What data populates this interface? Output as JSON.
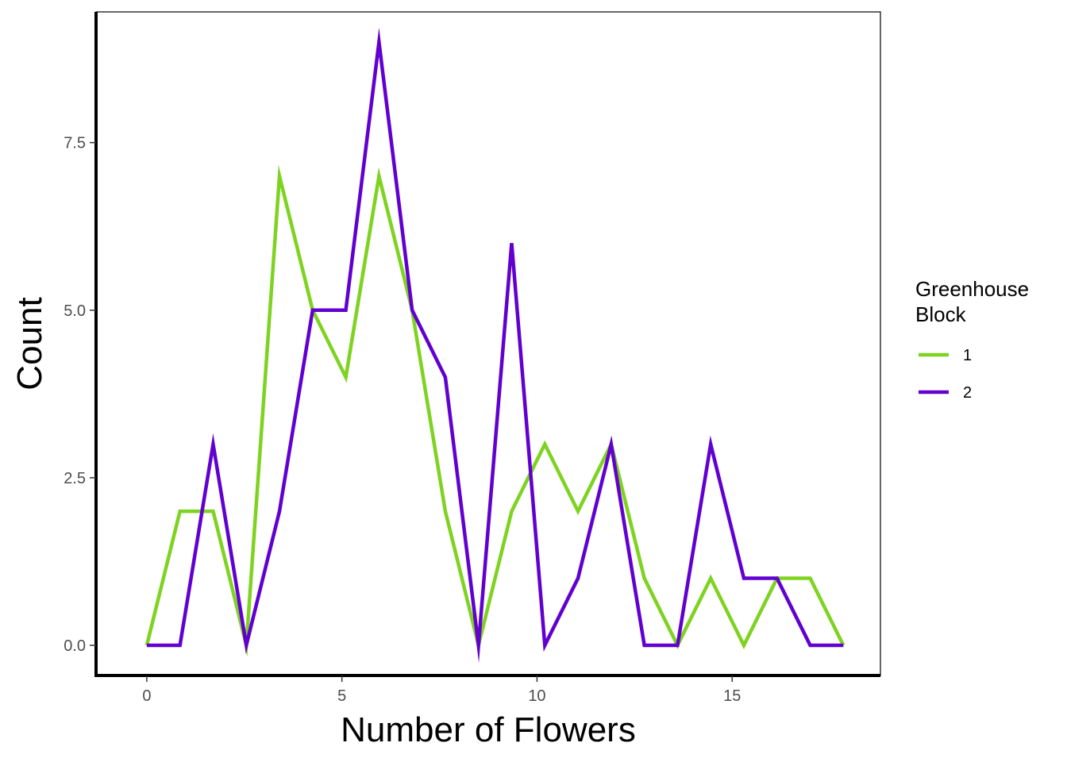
{
  "chart_data": {
    "type": "line",
    "title": "",
    "xlabel": "Number of Flowers",
    "ylabel": "Count",
    "xlim": [
      -1.3,
      18.8
    ],
    "ylim": [
      -0.45,
      9.45
    ],
    "xticks": [
      0,
      5,
      10,
      15
    ],
    "xtick_labels": [
      "0",
      "5",
      "10",
      "15"
    ],
    "yticks": [
      0,
      2.5,
      5,
      7.5
    ],
    "ytick_labels": [
      "0.0",
      "2.5",
      "5.0",
      "7.5"
    ],
    "grid": false,
    "legend": {
      "title_lines": [
        "Greenhouse",
        "Block"
      ],
      "position": "right"
    },
    "x": [
      0,
      0.85,
      1.7,
      2.55,
      3.4,
      4.25,
      5.1,
      5.95,
      6.8,
      7.65,
      8.5,
      9.35,
      10.2,
      11.05,
      11.9,
      12.75,
      13.6,
      14.45,
      15.3,
      16.15,
      17.0,
      17.85
    ],
    "series": [
      {
        "name": "1",
        "color": "#7ed321",
        "values": [
          0,
          2,
          2,
          0,
          7,
          5,
          4,
          7,
          5,
          2,
          0,
          2,
          3,
          2,
          3,
          1,
          0,
          1,
          0,
          1,
          1,
          0
        ]
      },
      {
        "name": "2",
        "color": "#6100d0",
        "values": [
          0,
          0,
          3,
          0,
          2,
          5,
          5,
          9,
          5,
          4,
          0,
          6,
          0,
          1,
          3,
          0,
          0,
          3,
          1,
          1,
          0,
          0
        ]
      }
    ]
  }
}
